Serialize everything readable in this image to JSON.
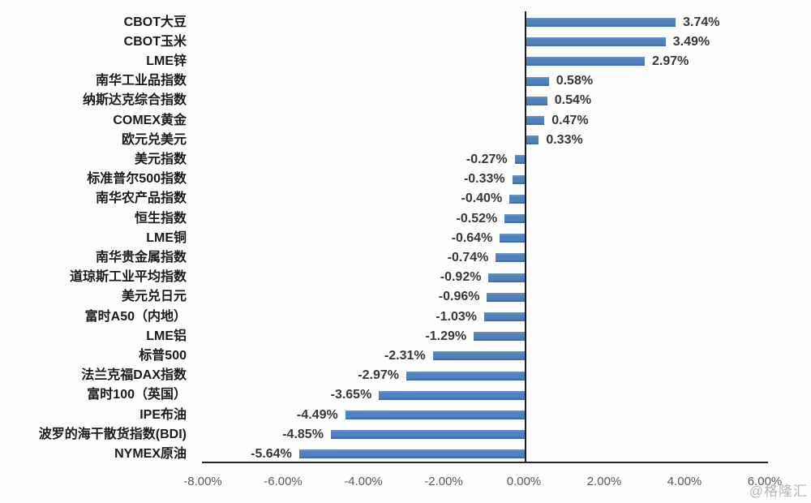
{
  "watermark": "@格隆汇",
  "chart_data": {
    "type": "bar",
    "orientation": "horizontal",
    "title": "",
    "xlabel": "",
    "ylabel": "",
    "xlim": [
      -8,
      6.08
    ],
    "grid": false,
    "legend": false,
    "bar_color": "#4F81BD",
    "axis_color": "#262626",
    "x_ticks": [
      "-8.00%",
      "-6.00%",
      "-4.00%",
      "-2.00%",
      "0.00%",
      "2.00%",
      "4.00%",
      "6.00%"
    ],
    "x_tick_values": [
      -8,
      -6,
      -4,
      -2,
      0,
      2,
      4,
      6
    ],
    "categories": [
      "CBOT大豆",
      "CBOT玉米",
      "LME锌",
      "南华工业品指数",
      "纳斯达克综合指数",
      "COMEX黄金",
      "欧元兑美元",
      "美元指数",
      "标准普尔500指数",
      "南华农产品指数",
      "恒生指数",
      "LME铜",
      "南华贵金属指数",
      "道琼斯工业平均指数",
      "美元兑日元",
      "富时A50（内地）",
      "LME铝",
      "标普500",
      "法兰克福DAX指数",
      "富时100（英国）",
      "IPE布油",
      "波罗的海干散货指数(BDI)",
      "NYMEX原油"
    ],
    "values": [
      3.74,
      3.49,
      2.97,
      0.58,
      0.54,
      0.47,
      0.33,
      -0.27,
      -0.33,
      -0.4,
      -0.52,
      -0.64,
      -0.74,
      -0.92,
      -0.96,
      -1.03,
      -1.29,
      -2.31,
      -2.97,
      -3.65,
      -4.49,
      -4.85,
      -5.64
    ],
    "value_labels": [
      "3.74%",
      "3.49%",
      "2.97%",
      "0.58%",
      "0.54%",
      "0.47%",
      "0.33%",
      "-0.27%",
      "-0.33%",
      "-0.40%",
      "-0.52%",
      "-0.64%",
      "-0.74%",
      "-0.92%",
      "-0.96%",
      "-1.03%",
      "-1.29%",
      "-2.31%",
      "-2.97%",
      "-3.65%",
      "-4.49%",
      "-4.85%",
      "-5.64%"
    ]
  }
}
